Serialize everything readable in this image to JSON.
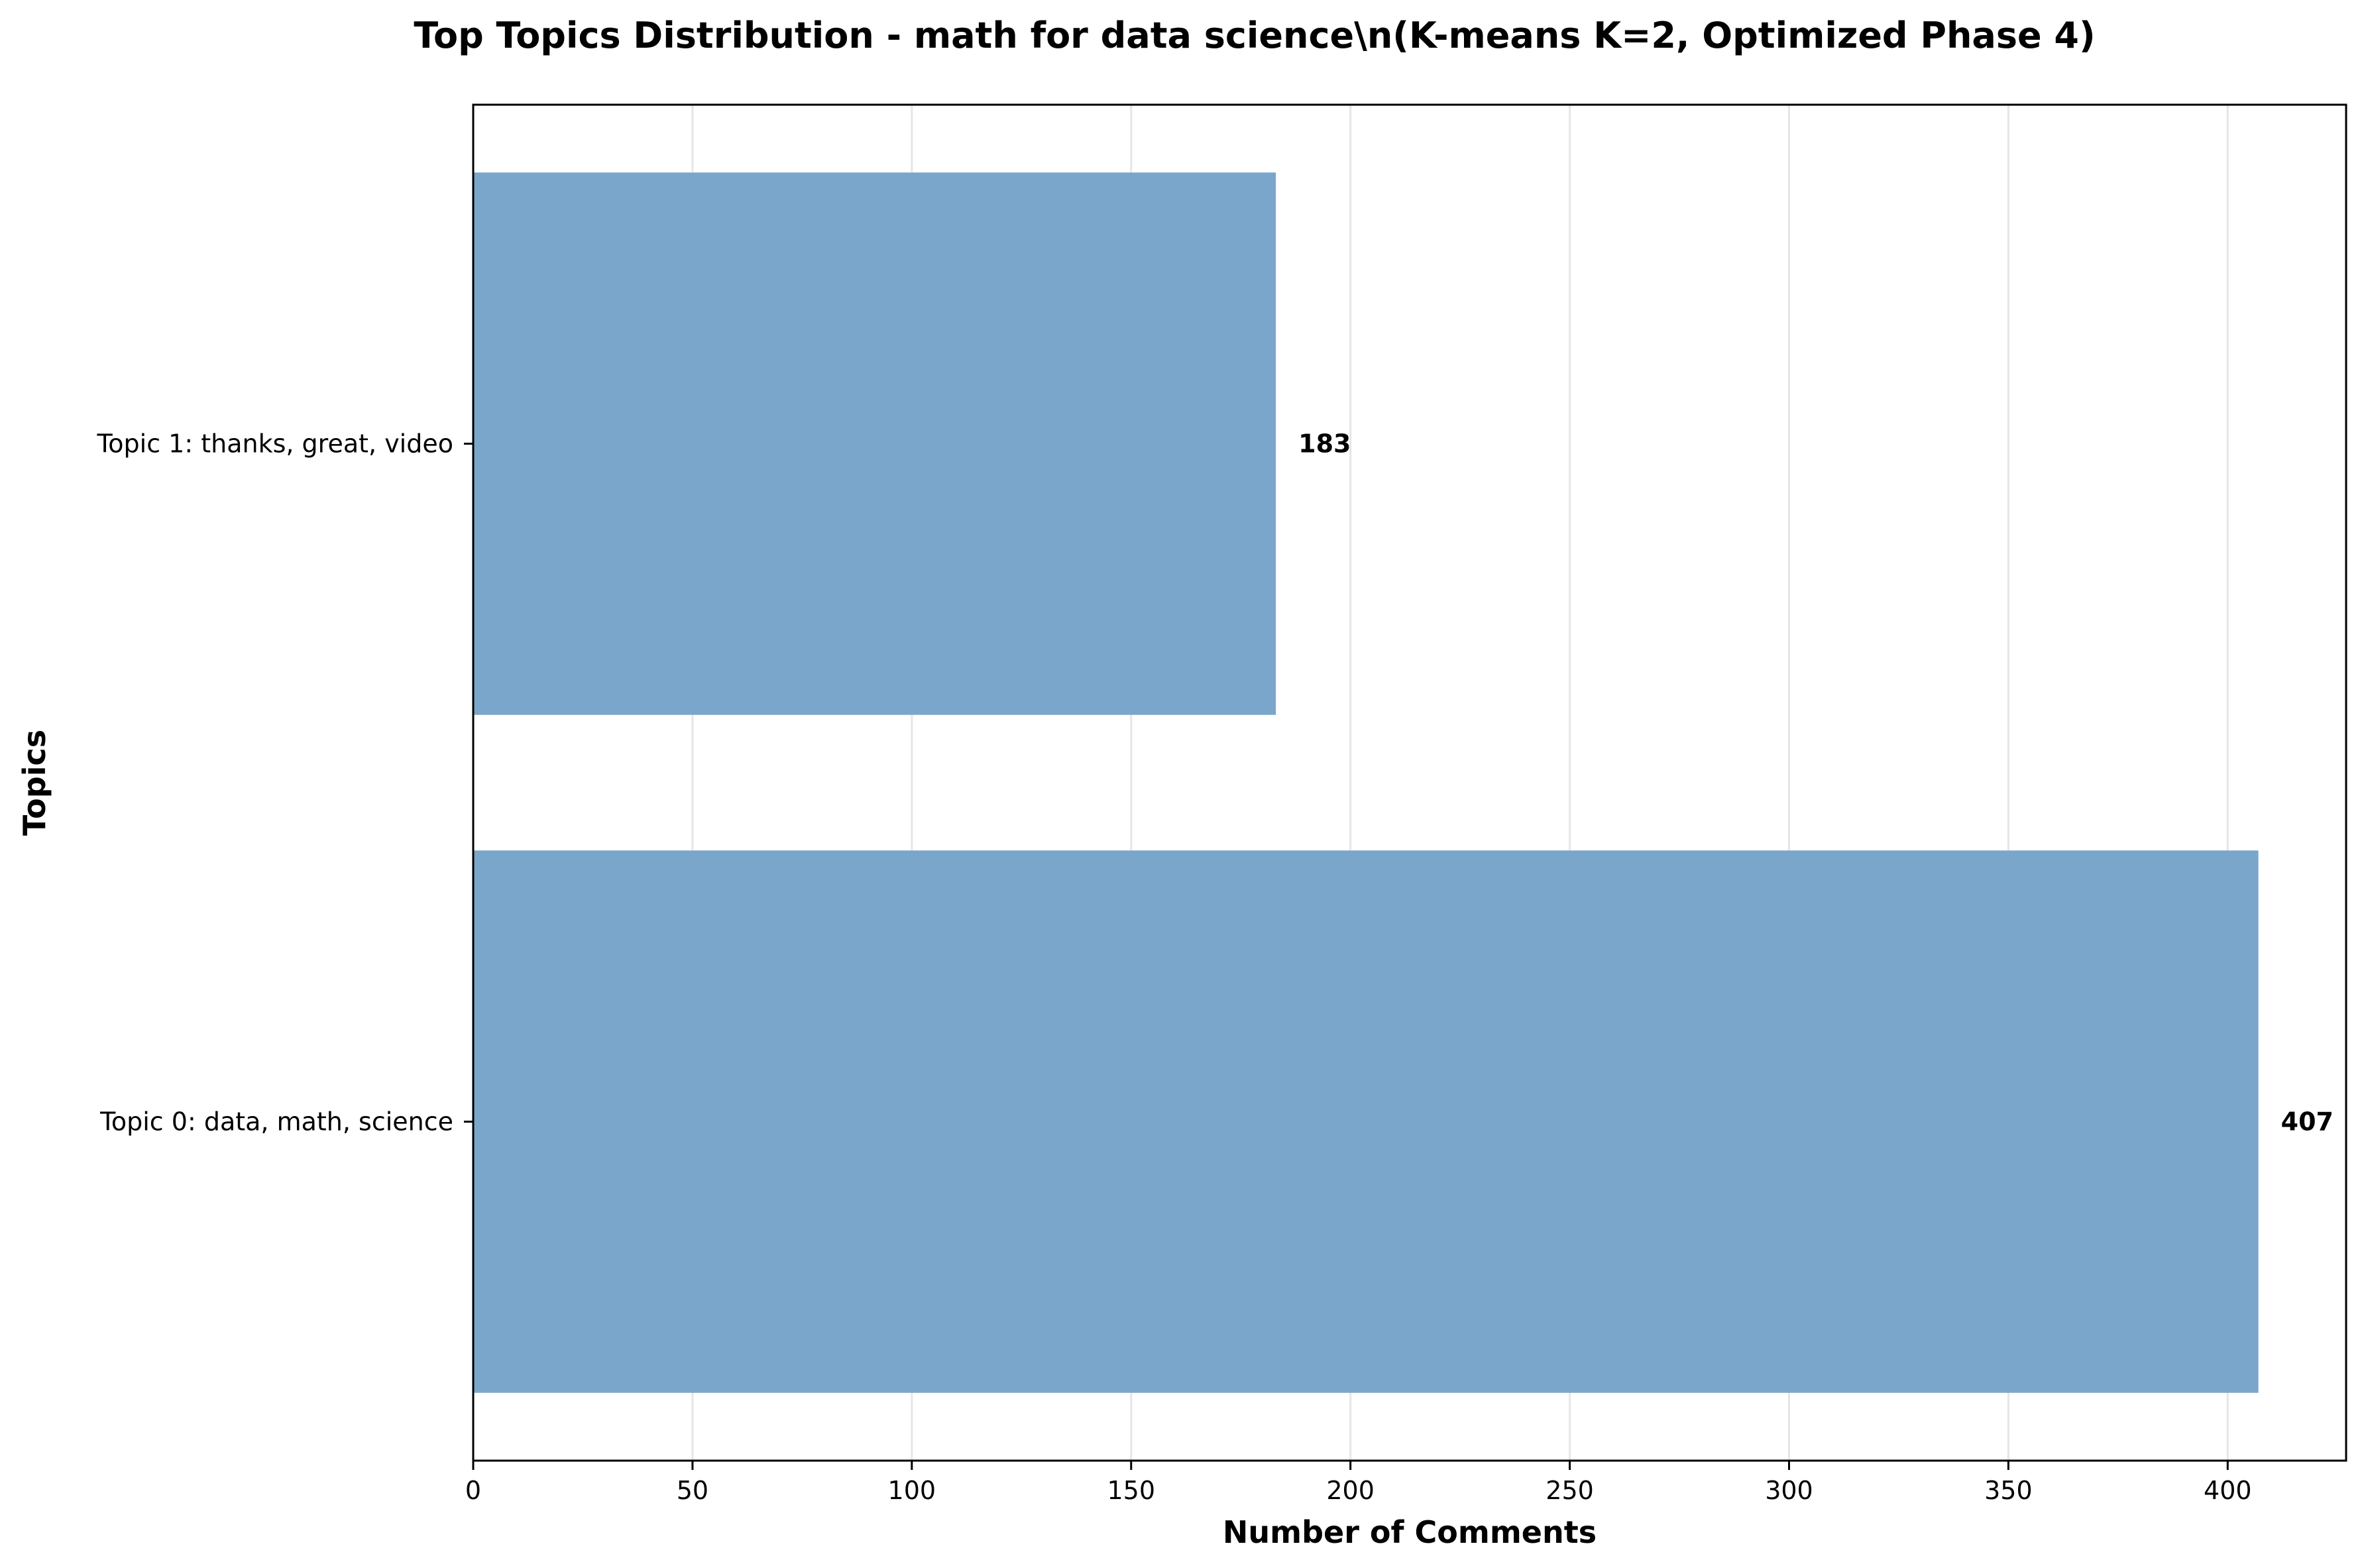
{
  "chart_data": {
    "type": "bar",
    "orientation": "horizontal",
    "title": "Top Topics Distribution - math for data science\\n(K-means K=2, Optimized Phase 4)",
    "xlabel": "Number of Comments",
    "ylabel": "Topics",
    "categories": [
      "Topic 1: thanks, great, video",
      "Topic 0: data, math, science"
    ],
    "values": [
      183,
      407
    ],
    "value_labels": [
      "183",
      "407"
    ],
    "xlim": [
      0,
      427
    ],
    "xticks": [
      0,
      50,
      100,
      150,
      200,
      250,
      300,
      350,
      400
    ],
    "xtick_labels": [
      "0",
      "50",
      "100",
      "150",
      "200",
      "250",
      "300",
      "350",
      "400"
    ],
    "grid": "vertical",
    "legend": "none",
    "bar_color": "#7ba6cb",
    "grid_color": "#e6e6e6"
  }
}
